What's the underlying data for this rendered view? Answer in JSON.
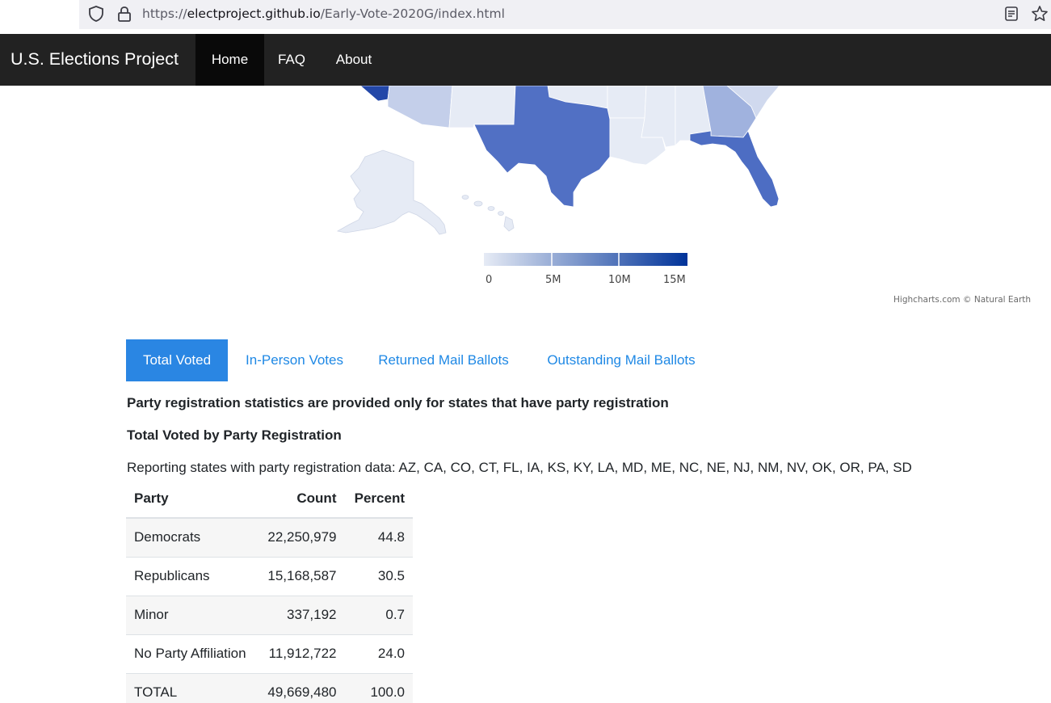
{
  "browser": {
    "url_prefix": "https://",
    "url_host": "electproject.github.io",
    "url_path": "/Early-Vote-2020G/index.html",
    "icons": [
      "shield-icon",
      "lock-icon",
      "reader-view-icon",
      "bookmark-star-icon"
    ]
  },
  "navbar": {
    "brand": "U.S. Elections Project",
    "links": [
      {
        "label": "Home",
        "active": true
      },
      {
        "label": "FAQ",
        "active": false
      },
      {
        "label": "About",
        "active": false
      }
    ]
  },
  "map": {
    "legend_labels": [
      "0",
      "5M",
      "10M",
      "15M"
    ],
    "credits": "Highcharts.com © Natural Earth",
    "colors": {
      "min": "#e6ebf5",
      "max": "#003399"
    }
  },
  "tabs": [
    {
      "label": "Total Voted",
      "active": true
    },
    {
      "label": "In-Person Votes",
      "active": false
    },
    {
      "label": "Returned Mail Ballots",
      "active": false
    },
    {
      "label": "Outstanding Mail Ballots",
      "active": false
    }
  ],
  "content": {
    "note": "Party registration statistics are provided only for states that have party registration",
    "subtitle": "Total Voted by Party Registration",
    "reporting": "Reporting states with party registration data: AZ, CA, CO, CT, FL, IA, KS, KY, LA, MD, ME, NC, NE, NJ, NM, NV, OK, OR, PA, SD"
  },
  "table": {
    "headers": [
      "Party",
      "Count",
      "Percent"
    ],
    "rows": [
      [
        "Democrats",
        "22,250,979",
        "44.8"
      ],
      [
        "Republicans",
        "15,168,587",
        "30.5"
      ],
      [
        "Minor",
        "337,192",
        "0.7"
      ],
      [
        "No Party Affiliation",
        "11,912,722",
        "24.0"
      ],
      [
        "TOTAL",
        "49,669,480",
        "100.0"
      ]
    ]
  },
  "colors": {
    "navbar_bg": "#222222",
    "tab_active_bg": "#2a86e3",
    "link": "#1e88e5"
  }
}
